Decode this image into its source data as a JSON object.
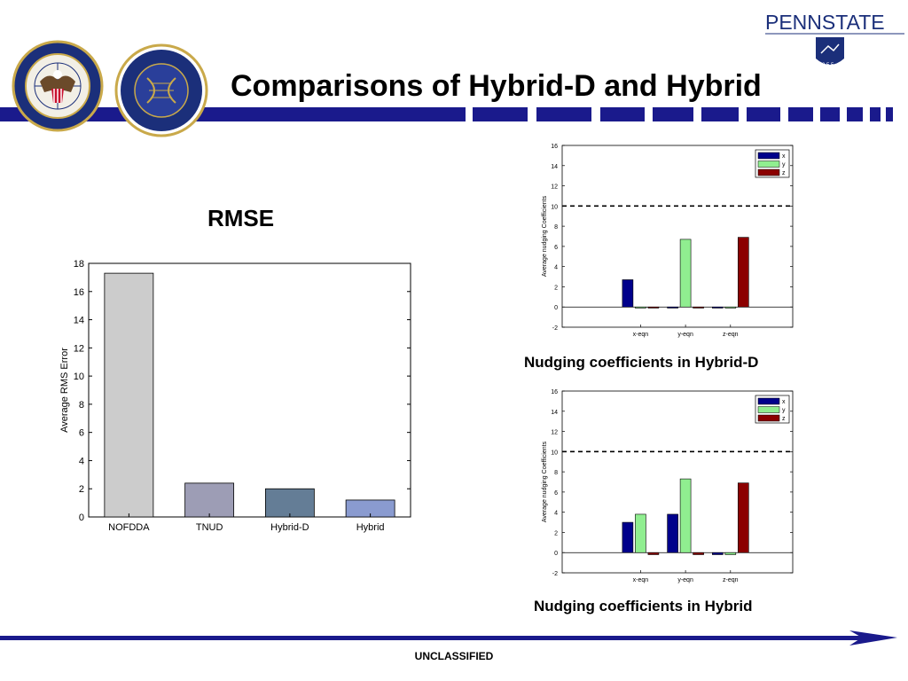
{
  "slide": {
    "title": "Comparisons of Hybrid-D and Hybrid",
    "rmse_heading": "RMSE",
    "caption_hybrid_d": "Nudging coefficients in Hybrid-D",
    "caption_hybrid": "Nudging coefficients in Hybrid",
    "footer": "UNCLASSIFIED"
  },
  "logos": {
    "left_seal_text": "DEFENSE THREAT REDUCTION AGENCY · UNITED STATES OF AMERICA",
    "right_seal_text": "JOINT SCIENCE AND TECHNOLOGY OFFICE · CHEMICAL AND BIOLOGICAL DEFENSE",
    "psu_name": "PENNSTATE",
    "psu_year": "1 8 5 5"
  },
  "colors": {
    "navy": "#1a1a8c",
    "bar_x": "#00008b",
    "bar_y": "#90ee90",
    "bar_z": "#8b0000"
  },
  "chart_data": [
    {
      "type": "bar",
      "categories": [
        "NOFDDA",
        "TNUD",
        "Hybrid-D",
        "Hybrid"
      ],
      "values": [
        17.3,
        2.4,
        2.0,
        1.2
      ],
      "colors": [
        "#cccccc",
        "#9d9db5",
        "#647d96",
        "#8a9bd0"
      ],
      "ylabel": "Average RMS Error",
      "ylim": [
        0,
        18
      ],
      "yticks": [
        0,
        2,
        4,
        6,
        8,
        10,
        12,
        14,
        16,
        18
      ],
      "grid": false
    },
    {
      "type": "bar",
      "categories": [
        "x-eqn",
        "y-eqn",
        "z-eqn"
      ],
      "series": [
        {
          "name": "x",
          "values": [
            2.7,
            0.0,
            0.0
          ]
        },
        {
          "name": "y",
          "values": [
            0.0,
            6.7,
            0.0
          ]
        },
        {
          "name": "z",
          "values": [
            0.0,
            0.0,
            6.9
          ]
        }
      ],
      "ylabel": "Average nudging Coefficients",
      "ylim": [
        -2,
        16
      ],
      "yticks": [
        -2,
        0,
        2,
        4,
        6,
        8,
        10,
        12,
        14,
        16
      ],
      "reference_line": 10,
      "legend_position": "top-right"
    },
    {
      "type": "bar",
      "categories": [
        "x-eqn",
        "y-eqn",
        "z-eqn"
      ],
      "series": [
        {
          "name": "x",
          "values": [
            3.0,
            3.8,
            -0.2
          ]
        },
        {
          "name": "y",
          "values": [
            3.8,
            7.3,
            -0.2
          ]
        },
        {
          "name": "z",
          "values": [
            -0.2,
            -0.2,
            6.9
          ]
        }
      ],
      "ylabel": "Average nudging Coefficients",
      "ylim": [
        -2,
        16
      ],
      "yticks": [
        -2,
        0,
        2,
        4,
        6,
        8,
        10,
        12,
        14,
        16
      ],
      "reference_line": 10,
      "legend_position": "top-right"
    }
  ]
}
